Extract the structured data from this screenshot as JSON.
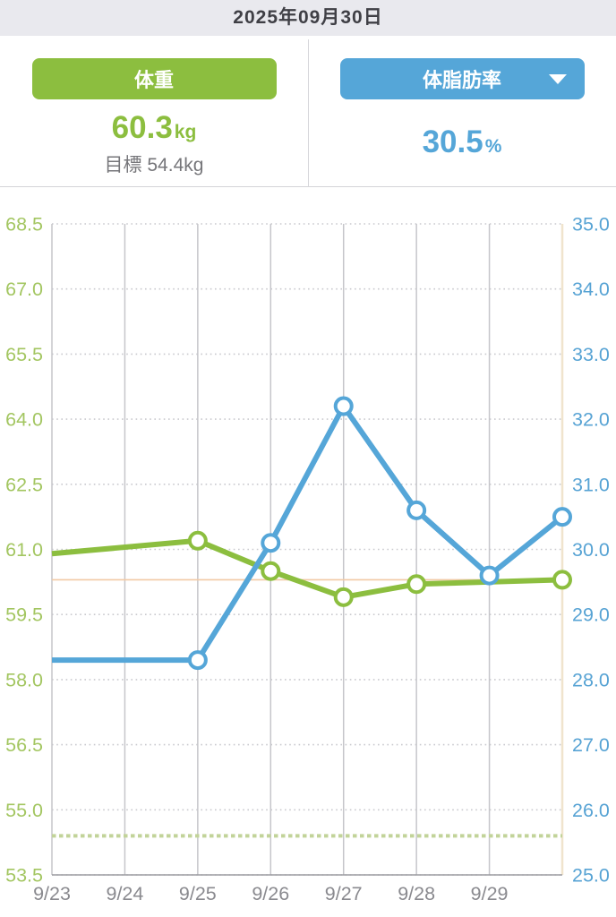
{
  "header": {
    "date": "2025年09月30日"
  },
  "summary": {
    "weight": {
      "label": "体重",
      "value": "60.3",
      "unit": "kg",
      "goal_text": "目標 54.4kg",
      "color": "#8cbe3f"
    },
    "bodyfat": {
      "label": "体脂肪率",
      "value": "30.5",
      "unit": "%",
      "dropdown_icon": "triangle-down",
      "color": "#55a6d8"
    }
  },
  "chart_data": {
    "type": "line",
    "x_labels": [
      "9/23",
      "9/24",
      "9/25",
      "9/26",
      "9/27",
      "9/28",
      "9/29"
    ],
    "x_slot_count": 8,
    "left_axis": {
      "min": 53.5,
      "max": 68.5,
      "ticks": [
        68.5,
        67.0,
        65.5,
        64.0,
        62.5,
        61.0,
        59.5,
        58.0,
        56.5,
        55.0,
        53.5
      ],
      "label_color": "#a3c661"
    },
    "right_axis": {
      "min": 25.0,
      "max": 35.0,
      "ticks": [
        35.0,
        34.0,
        33.0,
        32.0,
        31.0,
        30.0,
        29.0,
        28.0,
        27.0,
        26.0,
        25.0
      ],
      "label_color": "#57a3d4"
    },
    "series": [
      {
        "name": "体重",
        "axis": "left",
        "color": "#8cbe3f",
        "points": [
          {
            "x": 0,
            "v": 60.9,
            "marker": false
          },
          {
            "x": 2,
            "v": 61.2,
            "marker": true
          },
          {
            "x": 3,
            "v": 60.5,
            "marker": true
          },
          {
            "x": 4,
            "v": 59.9,
            "marker": true
          },
          {
            "x": 5,
            "v": 60.2,
            "marker": true
          },
          {
            "x": 7,
            "v": 60.3,
            "marker": true
          }
        ]
      },
      {
        "name": "体脂肪率",
        "axis": "right",
        "color": "#55a6d8",
        "points": [
          {
            "x": 0,
            "v": 28.3,
            "marker": false
          },
          {
            "x": 2,
            "v": 28.3,
            "marker": true
          },
          {
            "x": 3,
            "v": 30.1,
            "marker": true
          },
          {
            "x": 4,
            "v": 32.2,
            "marker": true
          },
          {
            "x": 5,
            "v": 30.6,
            "marker": true
          },
          {
            "x": 6,
            "v": 29.6,
            "marker": true
          },
          {
            "x": 7,
            "v": 30.5,
            "marker": true
          }
        ]
      }
    ],
    "reference_lines": [
      {
        "axis": "left",
        "value": 60.3,
        "style": "solid",
        "color": "#f2c9a4"
      },
      {
        "axis": "left",
        "value": 54.4,
        "style": "dashed",
        "color": "#c2d399"
      }
    ],
    "grid": {
      "vline_color": "#c6c6ca",
      "hline_color": "#c9c9ce",
      "left_axis_color": "#c6c6ca",
      "right_axis_color": "#f0e4cd",
      "baseline_color": "#9c9ca1",
      "x_label_color": "#8a8a8f"
    }
  }
}
